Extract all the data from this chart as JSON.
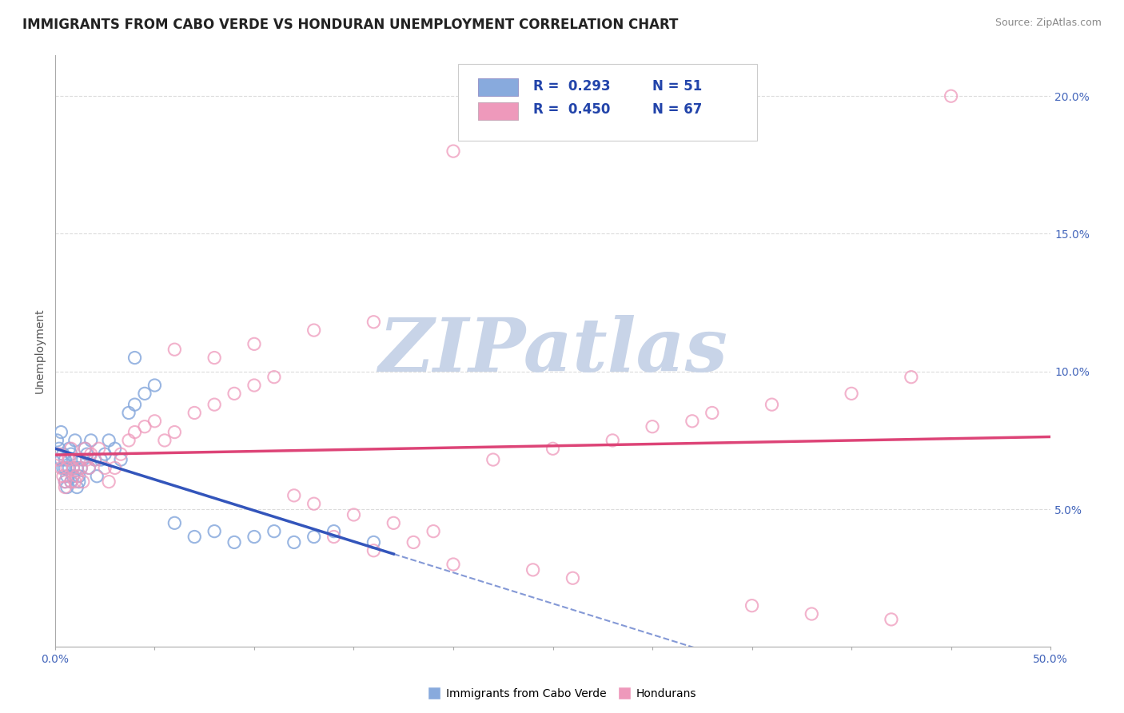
{
  "title": "IMMIGRANTS FROM CABO VERDE VS HONDURAN UNEMPLOYMENT CORRELATION CHART",
  "source_text": "Source: ZipAtlas.com",
  "ylabel": "Unemployment",
  "xlim": [
    0.0,
    0.5
  ],
  "ylim": [
    0.0,
    0.215
  ],
  "xticks": [
    0.0,
    0.05,
    0.1,
    0.15,
    0.2,
    0.25,
    0.3,
    0.35,
    0.4,
    0.45,
    0.5
  ],
  "yticks": [
    0.0,
    0.05,
    0.1,
    0.15,
    0.2
  ],
  "watermark_text": "ZIPatlas",
  "watermark_color": "#c8d4e8",
  "blue_color": "#88aadd",
  "pink_color": "#ee99bb",
  "blue_line_color": "#3355bb",
  "pink_line_color": "#dd4477",
  "grid_color": "#cccccc",
  "background_color": "#ffffff",
  "title_fontsize": 12,
  "label_fontsize": 10,
  "tick_fontsize": 10,
  "legend_blue_label": "R = 0.293   N = 51",
  "legend_pink_label": "R = 0.450   N = 67",
  "legend_r_color": "#3355bb",
  "legend_n_color": "#3355bb",
  "bottom_legend_blue": "Immigrants from Cabo Verde",
  "bottom_legend_pink": "Hondurans",
  "blue_x": [
    0.001,
    0.002,
    0.003,
    0.003,
    0.004,
    0.004,
    0.005,
    0.005,
    0.005,
    0.006,
    0.006,
    0.007,
    0.007,
    0.008,
    0.008,
    0.009,
    0.009,
    0.01,
    0.01,
    0.011,
    0.011,
    0.012,
    0.012,
    0.013,
    0.014,
    0.015,
    0.016,
    0.017,
    0.018,
    0.02,
    0.021,
    0.023,
    0.025,
    0.027,
    0.03,
    0.033,
    0.037,
    0.04,
    0.045,
    0.05,
    0.06,
    0.07,
    0.08,
    0.09,
    0.1,
    0.11,
    0.12,
    0.13,
    0.14,
    0.16,
    0.04
  ],
  "blue_y": [
    0.075,
    0.072,
    0.068,
    0.078,
    0.065,
    0.07,
    0.065,
    0.068,
    0.06,
    0.062,
    0.058,
    0.065,
    0.072,
    0.06,
    0.07,
    0.065,
    0.062,
    0.068,
    0.075,
    0.058,
    0.065,
    0.062,
    0.06,
    0.065,
    0.068,
    0.072,
    0.07,
    0.065,
    0.075,
    0.068,
    0.062,
    0.068,
    0.07,
    0.075,
    0.072,
    0.068,
    0.085,
    0.088,
    0.092,
    0.095,
    0.045,
    0.04,
    0.042,
    0.038,
    0.04,
    0.042,
    0.038,
    0.04,
    0.042,
    0.038,
    0.105
  ],
  "pink_x": [
    0.001,
    0.002,
    0.003,
    0.004,
    0.005,
    0.005,
    0.006,
    0.007,
    0.008,
    0.008,
    0.009,
    0.01,
    0.011,
    0.012,
    0.013,
    0.014,
    0.015,
    0.016,
    0.017,
    0.018,
    0.02,
    0.022,
    0.025,
    0.027,
    0.03,
    0.033,
    0.037,
    0.04,
    0.045,
    0.05,
    0.055,
    0.06,
    0.07,
    0.08,
    0.09,
    0.1,
    0.11,
    0.12,
    0.13,
    0.15,
    0.17,
    0.19,
    0.22,
    0.25,
    0.28,
    0.3,
    0.33,
    0.36,
    0.4,
    0.43,
    0.2,
    0.24,
    0.26,
    0.18,
    0.14,
    0.16,
    0.32,
    0.35,
    0.38,
    0.42,
    0.06,
    0.08,
    0.1,
    0.13,
    0.16,
    0.2,
    0.45
  ],
  "pink_y": [
    0.068,
    0.07,
    0.065,
    0.062,
    0.06,
    0.058,
    0.065,
    0.068,
    0.06,
    0.072,
    0.065,
    0.06,
    0.062,
    0.068,
    0.065,
    0.06,
    0.072,
    0.068,
    0.065,
    0.07,
    0.068,
    0.072,
    0.065,
    0.06,
    0.065,
    0.07,
    0.075,
    0.078,
    0.08,
    0.082,
    0.075,
    0.078,
    0.085,
    0.088,
    0.092,
    0.095,
    0.098,
    0.055,
    0.052,
    0.048,
    0.045,
    0.042,
    0.068,
    0.072,
    0.075,
    0.08,
    0.085,
    0.088,
    0.092,
    0.098,
    0.03,
    0.028,
    0.025,
    0.038,
    0.04,
    0.035,
    0.082,
    0.015,
    0.012,
    0.01,
    0.108,
    0.105,
    0.11,
    0.115,
    0.118,
    0.18,
    0.2
  ]
}
